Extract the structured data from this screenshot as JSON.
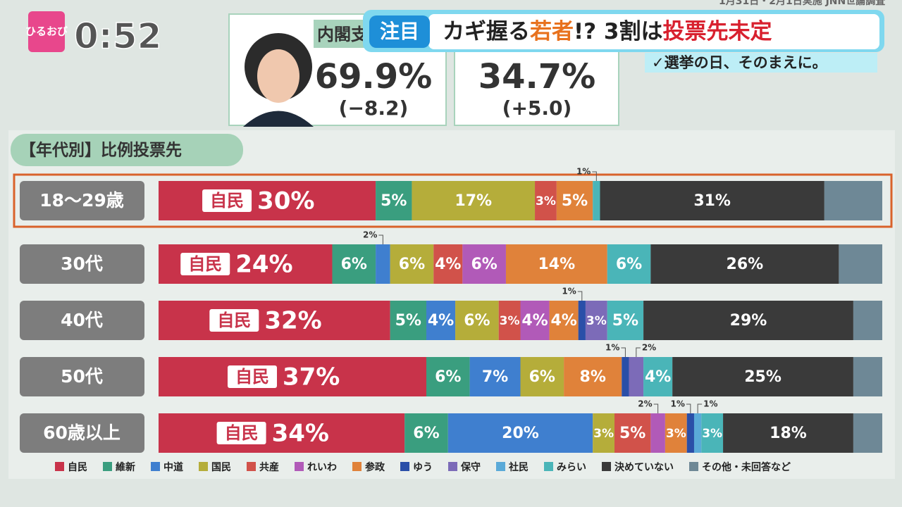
{
  "logo": "ひるおび",
  "clock": "0:52",
  "survey_note": "1月31日・2月1日実施 JNN世論調査",
  "headline": {
    "tag": "注目",
    "parts": [
      "カギ握る",
      "若者",
      "!? 3割は",
      "投票先未定"
    ]
  },
  "subline": "✓選挙の日、そのまえに。",
  "approval": [
    {
      "label": "内閣支",
      "value": "69.9%",
      "change": "(−8.2)"
    },
    {
      "value": "34.7%",
      "change": "(+5.0)"
    }
  ],
  "chart_data": {
    "type": "bar",
    "orientation": "horizontal",
    "stacked": true,
    "title": "【年代別】比例投票先",
    "highlight": 0,
    "categories": [
      "18〜29歳",
      "30代",
      "40代",
      "50代",
      "60歳以上"
    ],
    "series": [
      {
        "name": "自民",
        "color": "#c8334a",
        "values": [
          30,
          24,
          32,
          37,
          34
        ],
        "value_labels": [
          "30%",
          "24%",
          "32%",
          "37%",
          "34%"
        ]
      },
      {
        "name": "維新",
        "color": "#3a9e7f",
        "values": [
          5,
          6,
          5,
          6,
          6
        ],
        "value_labels": [
          "5%",
          "6%",
          "5%",
          "6%",
          "6%"
        ]
      },
      {
        "name": "中道",
        "color": "#3f7fcf",
        "values": [
          null,
          2,
          4,
          7,
          20
        ],
        "value_labels": [
          null,
          "2%",
          "4%",
          "7%",
          "20%"
        ]
      },
      {
        "name": "国民",
        "color": "#b5ad3a",
        "values": [
          17,
          6,
          6,
          6,
          3
        ],
        "value_labels": [
          "17%",
          "6%",
          "6%",
          "6%",
          "3%"
        ]
      },
      {
        "name": "共産",
        "color": "#d1524a",
        "values": [
          3,
          4,
          3,
          null,
          5
        ],
        "value_labels": [
          "3%",
          "4%",
          "3%",
          null,
          "5%"
        ]
      },
      {
        "name": "れいわ",
        "color": "#b15ab8",
        "values": [
          null,
          6,
          4,
          null,
          2
        ],
        "value_labels": [
          null,
          "6%",
          "4%",
          null,
          "2%"
        ]
      },
      {
        "name": "参政",
        "color": "#e0823a",
        "values": [
          5,
          14,
          4,
          8,
          3
        ],
        "value_labels": [
          "5%",
          "14%",
          "4%",
          "8%",
          "3%"
        ]
      },
      {
        "name": "ゆう",
        "color": "#2a4fa8",
        "values": [
          null,
          null,
          1,
          1,
          1
        ],
        "value_labels": [
          null,
          null,
          "1%",
          "1%",
          "1%"
        ]
      },
      {
        "name": "保守",
        "color": "#7c6bb8",
        "values": [
          null,
          null,
          3,
          2,
          null
        ],
        "value_labels": [
          null,
          null,
          "3%",
          "2%",
          null
        ]
      },
      {
        "name": "社民",
        "color": "#5aaad8",
        "values": [
          null,
          null,
          null,
          null,
          1
        ],
        "value_labels": [
          null,
          null,
          null,
          null,
          "1%"
        ]
      },
      {
        "name": "みらい",
        "color": "#4ab5b8",
        "values": [
          1,
          6,
          5,
          4,
          3
        ],
        "value_labels": [
          "1%",
          "6%",
          "5%",
          "4%",
          "3%"
        ]
      },
      {
        "name": "決めていない",
        "color": "#3a3a3a",
        "values": [
          31,
          26,
          29,
          25,
          18
        ],
        "value_labels": [
          "31%",
          "26%",
          "29%",
          "25%",
          "18%"
        ]
      },
      {
        "name": "その他・未回答など",
        "color": "#6e8896",
        "values": [
          8,
          6,
          4,
          4,
          4
        ],
        "value_labels": [
          null,
          null,
          null,
          null,
          null
        ]
      }
    ]
  }
}
